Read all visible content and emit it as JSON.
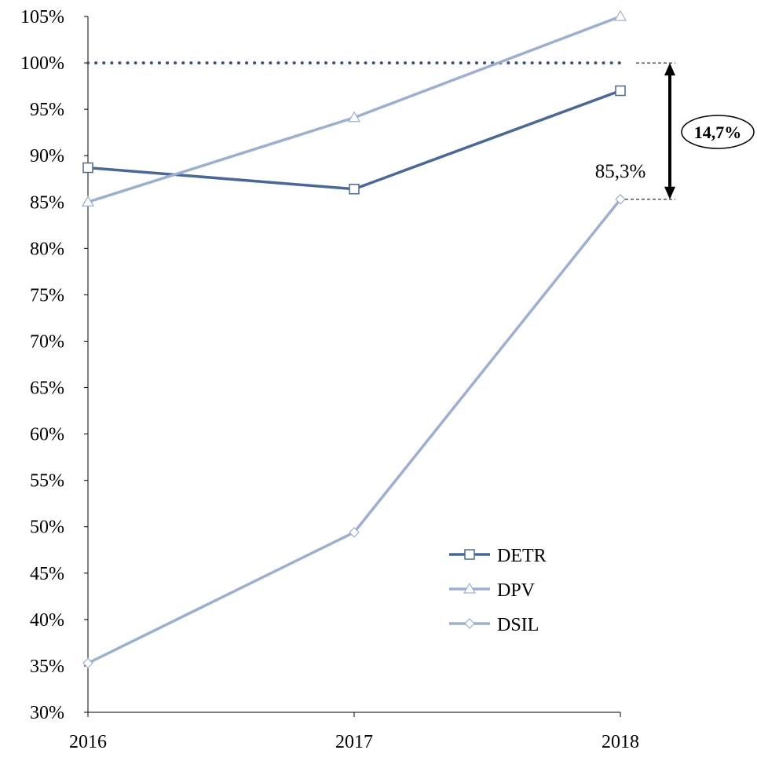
{
  "chart_data": {
    "type": "line",
    "title": "",
    "xlabel": "",
    "ylabel": "",
    "categories": [
      "2016",
      "2017",
      "2018"
    ],
    "ylim": [
      30,
      105
    ],
    "yticks": [
      "30%",
      "35%",
      "40%",
      "45%",
      "50%",
      "55%",
      "60%",
      "65%",
      "70%",
      "75%",
      "80%",
      "85%",
      "90%",
      "95%",
      "100%",
      "105%"
    ],
    "grid": false,
    "legend_position": "bottom-right",
    "series": [
      {
        "name": "DETR",
        "values": [
          88.7,
          86.4,
          97.0
        ],
        "color": "#4a6795",
        "marker": "square"
      },
      {
        "name": "DPV",
        "values": [
          85.0,
          94.1,
          105.0
        ],
        "color": "#9dafce",
        "marker": "triangle"
      },
      {
        "name": "DSIL",
        "values": [
          35.3,
          49.4,
          85.3
        ],
        "color": "#9dafce",
        "marker": "diamond"
      }
    ],
    "reference_line": {
      "value": 100,
      "style": "dotted",
      "color": "#3d5478"
    },
    "annotations": {
      "point_label": "85,3%",
      "gap_label": "14,7%"
    }
  }
}
